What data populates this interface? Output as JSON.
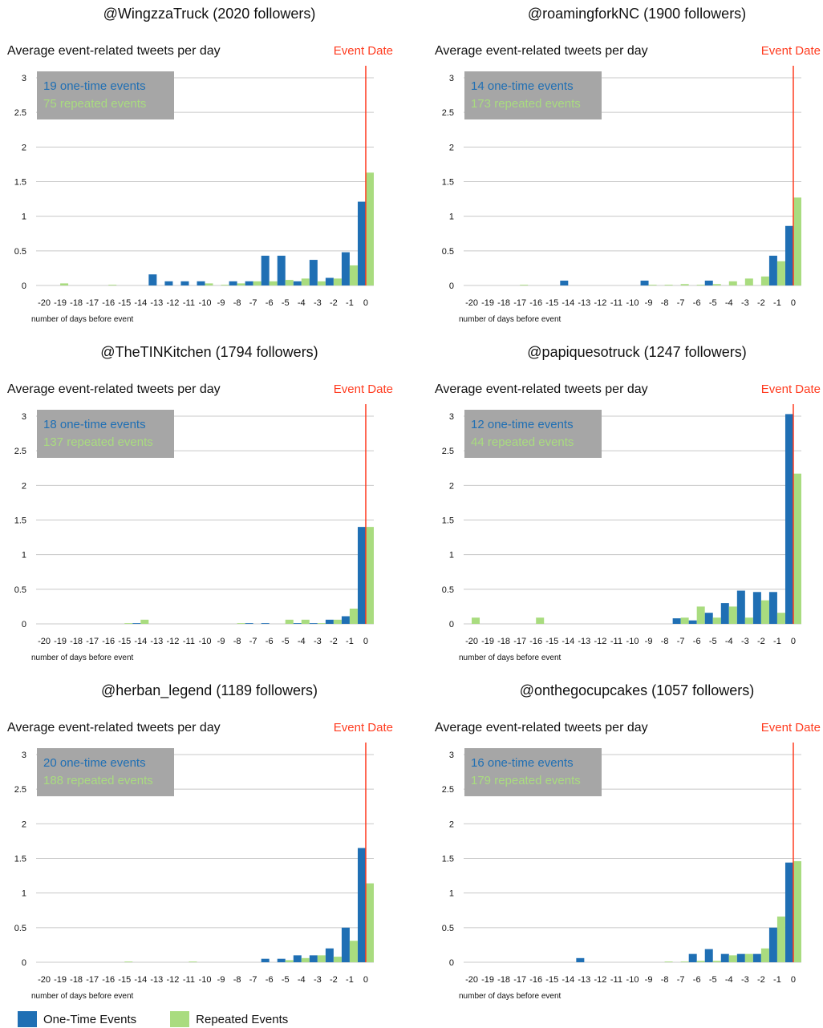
{
  "shared": {
    "y_title": "Average event-related tweets per day",
    "x_title": "number of days before event",
    "event_label": "Event Date",
    "x_ticks": [
      "-20",
      "-19",
      "-18",
      "-17",
      "-16",
      "-15",
      "-14",
      "-13",
      "-12",
      "-11",
      "-10",
      "-9",
      "-8",
      "-7",
      "-6",
      "-5",
      "-4",
      "-3",
      "-2",
      "-1",
      "0"
    ],
    "y_ticks": [
      "0",
      "0.5",
      "1",
      "1.5",
      "2",
      "2.5",
      "3"
    ]
  },
  "legend": {
    "one_time_label": "One-Time Events",
    "repeated_label": "Repeated Events"
  },
  "colors": {
    "one_time": "#1f6fb4",
    "repeated": "#a9dc7f",
    "event_line": "#ff3b1f",
    "grid": "#c8c8c8",
    "stats_box": "#a6a6a6"
  },
  "chart_data": [
    {
      "type": "bar",
      "title": "@WingzzaTruck (2020 followers)",
      "stats": [
        "19 one-time events",
        "75 repeated events"
      ],
      "x": [
        -20,
        -19,
        -18,
        -17,
        -16,
        -15,
        -14,
        -13,
        -12,
        -11,
        -10,
        -9,
        -8,
        -7,
        -6,
        -5,
        -4,
        -3,
        -2,
        -1,
        0
      ],
      "ylim": [
        0,
        3
      ],
      "series": [
        {
          "name": "One-Time Events",
          "values": [
            0,
            0,
            0,
            0,
            0,
            0,
            0,
            0.16,
            0.06,
            0.06,
            0.06,
            0,
            0.06,
            0.06,
            0.43,
            0.43,
            0.06,
            0.37,
            0.11,
            0.48,
            1.21
          ]
        },
        {
          "name": "Repeated Events",
          "values": [
            0,
            0.03,
            0,
            0,
            0.01,
            0,
            0,
            0,
            0,
            0,
            0.03,
            0.01,
            0.03,
            0.06,
            0.06,
            0.08,
            0.1,
            0.06,
            0.1,
            0.29,
            1.63
          ]
        }
      ]
    },
    {
      "type": "bar",
      "title": "@roamingforkNC (1900 followers)",
      "stats": [
        "14 one-time events",
        "173 repeated events"
      ],
      "x": [
        -20,
        -19,
        -18,
        -17,
        -16,
        -15,
        -14,
        -13,
        -12,
        -11,
        -10,
        -9,
        -8,
        -7,
        -6,
        -5,
        -4,
        -3,
        -2,
        -1,
        0
      ],
      "ylim": [
        0,
        3
      ],
      "series": [
        {
          "name": "One-Time Events",
          "values": [
            0,
            0,
            0,
            0,
            0,
            0,
            0.07,
            0,
            0,
            0,
            0,
            0.07,
            0,
            0,
            0,
            0.07,
            0,
            0,
            0,
            0.43,
            0.86
          ]
        },
        {
          "name": "Repeated Events",
          "values": [
            0,
            0,
            0,
            0.01,
            0,
            0,
            0,
            0,
            0,
            0,
            0,
            0.01,
            0.01,
            0.02,
            0.01,
            0.02,
            0.06,
            0.1,
            0.13,
            0.35,
            1.27
          ]
        }
      ]
    },
    {
      "type": "bar",
      "title": "@TheTINKitchen (1794 followers)",
      "stats": [
        "18 one-time events",
        "137 repeated events"
      ],
      "x": [
        -20,
        -19,
        -18,
        -17,
        -16,
        -15,
        -14,
        -13,
        -12,
        -11,
        -10,
        -9,
        -8,
        -7,
        -6,
        -5,
        -4,
        -3,
        -2,
        -1,
        0
      ],
      "ylim": [
        0,
        3
      ],
      "series": [
        {
          "name": "One-Time Events",
          "values": [
            0,
            0,
            0,
            0,
            0,
            0,
            0.01,
            0,
            0,
            0,
            0,
            0,
            0,
            0.01,
            0.01,
            0,
            0.01,
            0.01,
            0.06,
            0.11,
            1.4
          ]
        },
        {
          "name": "Repeated Events",
          "values": [
            0,
            0,
            0,
            0,
            0,
            0.01,
            0.06,
            0,
            0,
            0,
            0,
            0,
            0.01,
            0,
            0,
            0.06,
            0.06,
            0.01,
            0.06,
            0.22,
            1.4
          ]
        }
      ]
    },
    {
      "type": "bar",
      "title": "@papiquesotruck (1247 followers)",
      "stats": [
        "12 one-time events",
        "44 repeated events"
      ],
      "x": [
        -20,
        -19,
        -18,
        -17,
        -16,
        -15,
        -14,
        -13,
        -12,
        -11,
        -10,
        -9,
        -8,
        -7,
        -6,
        -5,
        -4,
        -3,
        -2,
        -1,
        0
      ],
      "ylim": [
        0,
        3
      ],
      "series": [
        {
          "name": "One-Time Events",
          "values": [
            0,
            0,
            0,
            0,
            0,
            0,
            0,
            0,
            0,
            0,
            0,
            0,
            0,
            0.08,
            0.05,
            0.16,
            0.3,
            0.48,
            0.46,
            0.46,
            3.03
          ]
        },
        {
          "name": "Repeated Events",
          "values": [
            0.09,
            0,
            0,
            0,
            0.09,
            0,
            0,
            0,
            0,
            0,
            0,
            0,
            0,
            0.09,
            0.25,
            0.09,
            0.25,
            0.09,
            0.34,
            0.16,
            2.17
          ]
        }
      ]
    },
    {
      "type": "bar",
      "title": "@herban_legend (1189 followers)",
      "stats": [
        "20 one-time events",
        "188 repeated events"
      ],
      "x": [
        -20,
        -19,
        -18,
        -17,
        -16,
        -15,
        -14,
        -13,
        -12,
        -11,
        -10,
        -9,
        -8,
        -7,
        -6,
        -5,
        -4,
        -3,
        -2,
        -1,
        0
      ],
      "ylim": [
        0,
        3
      ],
      "series": [
        {
          "name": "One-Time Events",
          "values": [
            0,
            0,
            0,
            0,
            0,
            0,
            0,
            0,
            0,
            0,
            0,
            0,
            0,
            0,
            0.05,
            0.05,
            0.1,
            0.1,
            0.2,
            0.5,
            1.65
          ]
        },
        {
          "name": "Repeated Events",
          "values": [
            0,
            0,
            0,
            0,
            0,
            0.01,
            0,
            0,
            0,
            0.01,
            0,
            0,
            0,
            0,
            0,
            0.03,
            0.06,
            0.1,
            0.08,
            0.31,
            1.14
          ]
        }
      ]
    },
    {
      "type": "bar",
      "title": "@onthegocupcakes (1057 followers)",
      "stats": [
        "16 one-time events",
        "179 repeated events"
      ],
      "x": [
        -20,
        -19,
        -18,
        -17,
        -16,
        -15,
        -14,
        -13,
        -12,
        -11,
        -10,
        -9,
        -8,
        -7,
        -6,
        -5,
        -4,
        -3,
        -2,
        -1,
        0
      ],
      "ylim": [
        0,
        3
      ],
      "series": [
        {
          "name": "One-Time Events",
          "values": [
            0,
            0,
            0,
            0,
            0,
            0,
            0,
            0.06,
            0,
            0,
            0,
            0,
            0,
            0,
            0.12,
            0.19,
            0.12,
            0.12,
            0.12,
            0.5,
            1.44
          ]
        },
        {
          "name": "Repeated Events",
          "values": [
            0,
            0,
            0,
            0,
            0,
            0,
            0,
            0,
            0,
            0,
            0,
            0,
            0.01,
            0.01,
            0.02,
            0.02,
            0.1,
            0.12,
            0.2,
            0.66,
            1.46
          ]
        }
      ]
    }
  ]
}
